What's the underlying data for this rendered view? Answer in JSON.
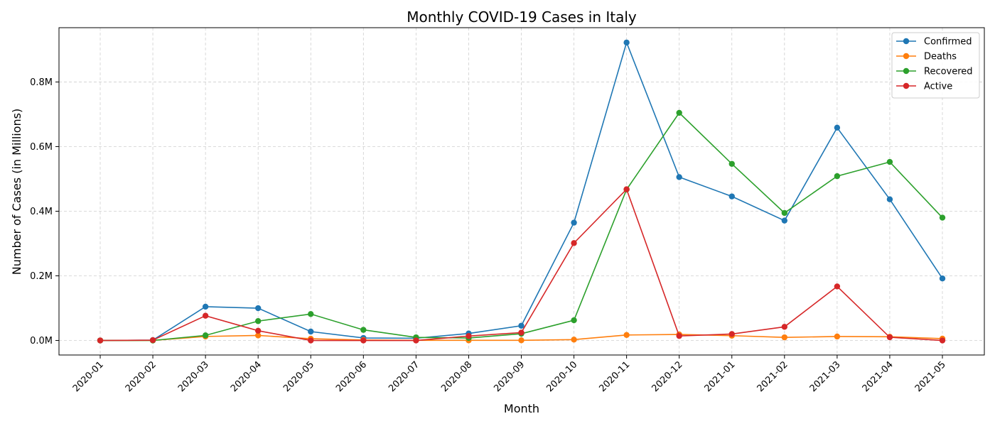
{
  "chart_data": {
    "type": "line",
    "title": "Monthly COVID-19 Cases in Italy",
    "xlabel": "Month",
    "ylabel": "Number of Cases (in Millions)",
    "categories": [
      "2020-01",
      "2020-02",
      "2020-03",
      "2020-04",
      "2020-05",
      "2020-06",
      "2020-07",
      "2020-08",
      "2020-09",
      "2020-10",
      "2020-11",
      "2020-12",
      "2021-01",
      "2021-02",
      "2021-03",
      "2021-04",
      "2021-05"
    ],
    "y_ticks": [
      0,
      200000,
      400000,
      600000,
      800000
    ],
    "y_tick_labels": [
      "0.0M",
      "0.2M",
      "0.4M",
      "0.6M",
      "0.8M"
    ],
    "ylim": [
      -45000,
      968000
    ],
    "grid": true,
    "legend_position": "top-right",
    "series": [
      {
        "name": "Confirmed",
        "color": "#1f77b4",
        "values": [
          0,
          1100,
          104500,
          99900,
          27500,
          7700,
          6900,
          21600,
          45600,
          364600,
          922100,
          505600,
          445800,
          371000,
          658600,
          436900,
          191900
        ]
      },
      {
        "name": "Deaths",
        "color": "#ff7f0e",
        "values": [
          0,
          30,
          12400,
          15500,
          5400,
          1400,
          400,
          350,
          400,
          2700,
          16900,
          18600,
          14900,
          9600,
          12200,
          11500,
          5600
        ]
      },
      {
        "name": "Recovered",
        "color": "#2ca02c",
        "values": [
          0,
          50,
          15700,
          59900,
          81800,
          32800,
          9600,
          7600,
          20800,
          62500,
          467300,
          704500,
          546600,
          394600,
          508500,
          552500,
          380000
        ]
      },
      {
        "name": "Active",
        "color": "#d62728",
        "values": [
          0,
          1000,
          76500,
          30100,
          0,
          0,
          0,
          13600,
          24400,
          301400,
          467900,
          14000,
          20000,
          42200,
          167200,
          9900,
          0
        ]
      }
    ]
  }
}
